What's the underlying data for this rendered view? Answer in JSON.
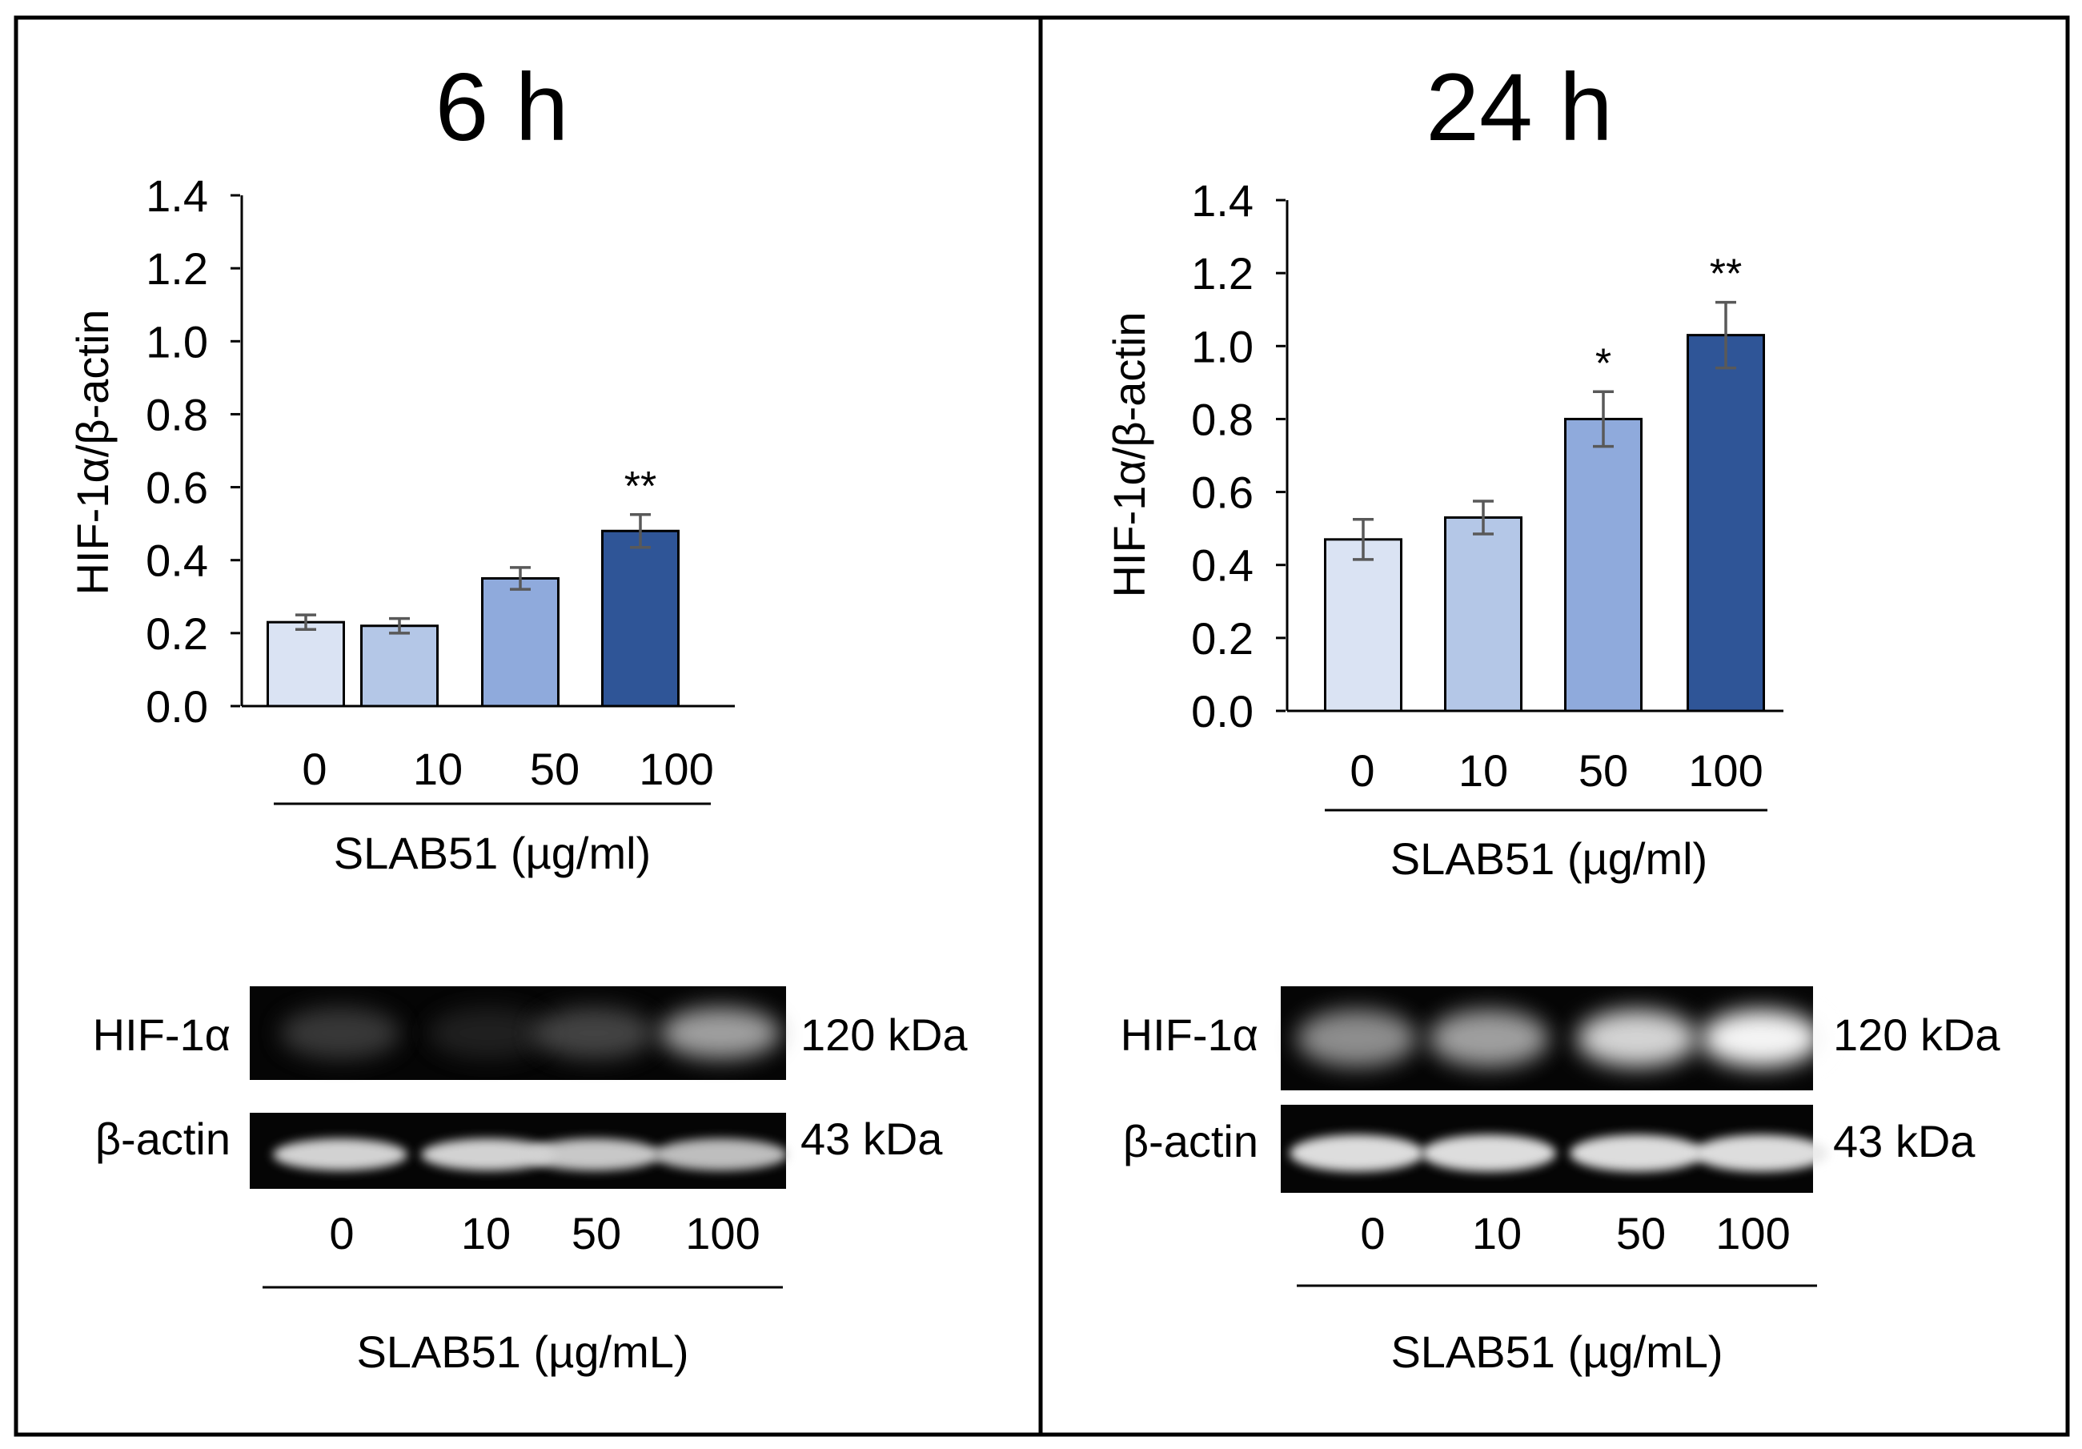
{
  "panels": [
    {
      "time_label": "6 h",
      "blot": {
        "rows": [
          {
            "protein": "HIF-1α",
            "size": "120 kDa",
            "intensities": [
              0.25,
              0.12,
              0.3,
              0.6
            ]
          },
          {
            "protein": "β-actin",
            "size": "43 kDa",
            "intensities": [
              0.85,
              0.85,
              0.8,
              0.75
            ]
          }
        ],
        "lane_labels": [
          "0",
          "10",
          "50",
          "100"
        ],
        "xlabel": "SLAB51 (µg/mL)"
      }
    },
    {
      "time_label": "24 h",
      "blot": {
        "rows": [
          {
            "protein": "HIF-1α",
            "size": "120 kDa",
            "intensities": [
              0.55,
              0.6,
              0.8,
              0.95
            ]
          },
          {
            "protein": "β-actin",
            "size": "43 kDa",
            "intensities": [
              0.9,
              0.9,
              0.9,
              0.9
            ]
          }
        ],
        "lane_labels": [
          "0",
          "10",
          "50",
          "100"
        ],
        "xlabel": "SLAB51 (µg/mL)"
      }
    }
  ],
  "chart_data": [
    {
      "type": "bar",
      "title": "6 h",
      "categories": [
        "0",
        "10",
        "50",
        "100"
      ],
      "values": [
        0.23,
        0.22,
        0.35,
        0.48
      ],
      "errors": [
        0.02,
        0.02,
        0.03,
        0.045
      ],
      "significance": [
        "",
        "",
        "",
        "**"
      ],
      "colors": [
        "#dae3f3",
        "#b4c7e7",
        "#8faadc",
        "#2f5597"
      ],
      "ylabel": "HIF-1α/β-actin",
      "xlabel": "SLAB51 (µg/ml)",
      "ylim": [
        0,
        1.4
      ],
      "yticks": [
        "0.0",
        "0.2",
        "0.4",
        "0.6",
        "0.8",
        "1.0",
        "1.2",
        "1.4"
      ],
      "grid": false
    },
    {
      "type": "bar",
      "title": "24 h",
      "categories": [
        "0",
        "10",
        "50",
        "100"
      ],
      "values": [
        0.47,
        0.53,
        0.8,
        1.03
      ],
      "errors": [
        0.055,
        0.045,
        0.075,
        0.09
      ],
      "significance": [
        "",
        "",
        "*",
        "**"
      ],
      "colors": [
        "#dae3f3",
        "#b4c7e7",
        "#8faadc",
        "#2f5597"
      ],
      "ylabel": "HIF-1α/β-actin",
      "xlabel": "SLAB51 (µg/ml)",
      "ylim": [
        0,
        1.4
      ],
      "yticks": [
        "0.0",
        "0.2",
        "0.4",
        "0.6",
        "0.8",
        "1.0",
        "1.2",
        "1.4"
      ],
      "grid": false
    }
  ]
}
